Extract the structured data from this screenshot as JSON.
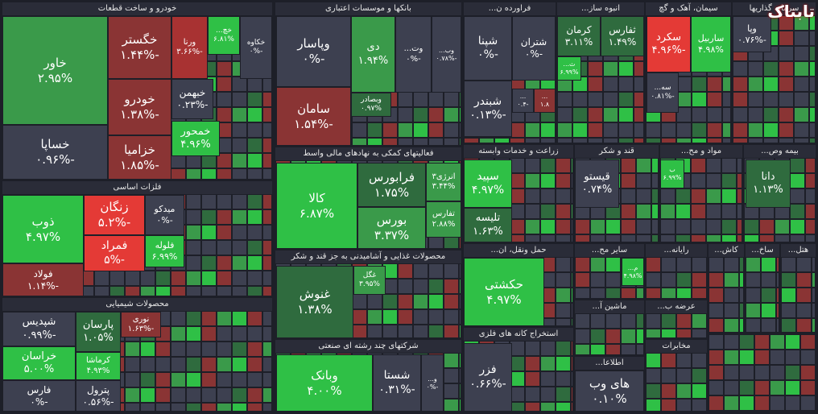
{
  "watermark": "تابناک",
  "sectors": [
    {
      "title": "خودرو و ساخت قطعات",
      "tiles": [
        {
          "name": "خاور",
          "change": "۲.۹۵%"
        },
        {
          "name": "خساپا",
          "change": "-۰.۹۶%"
        },
        {
          "name": "خگستر",
          "change": "-۱.۴۴%"
        },
        {
          "name": "ورنا",
          "change": "-۳.۶۶%"
        },
        {
          "name": "خچ...",
          "change": "۶.۸۱%"
        },
        {
          "name": "خکاوه",
          "change": "-۰%"
        },
        {
          "name": "خودرو",
          "change": "-۱.۳۸%"
        },
        {
          "name": "خزامیا",
          "change": "-۱.۸۵%"
        },
        {
          "name": "خبهمن",
          "change": "-۰.۲۳%"
        },
        {
          "name": "خمحور",
          "change": "۴.۹۶%"
        }
      ]
    },
    {
      "title": "بانکها و موسسات اعتباری",
      "tiles": [
        {
          "name": "وپاسار",
          "change": "-۰%"
        },
        {
          "name": "سامان",
          "change": "-۱.۵۴%"
        },
        {
          "name": "دی",
          "change": "۱.۹۴%"
        },
        {
          "name": "وت...",
          "change": "-۰%"
        },
        {
          "name": "وب...",
          "change": "-۰.۷۸%"
        },
        {
          "name": "وبصادر",
          "change": "۰.۹۷%"
        }
      ]
    },
    {
      "title": "فراورده ن...",
      "tiles": [
        {
          "name": "شپنا",
          "change": "-۰%"
        },
        {
          "name": "شتران",
          "change": "-۰%"
        },
        {
          "name": "شبندر",
          "change": "-۰.۱۳%"
        },
        {
          "name": "...",
          "change": "-۰.۴"
        },
        {
          "name": "...",
          "change": "۱.۸"
        }
      ]
    },
    {
      "title": "انبوه ساز...",
      "tiles": [
        {
          "name": "کرمان",
          "change": "۳.۱۱%"
        },
        {
          "name": "ثفارس",
          "change": "۱.۴۹%"
        },
        {
          "name": "ث...",
          "change": "۶.۹۹%"
        }
      ]
    },
    {
      "title": "سیمان، آهک و گچ",
      "tiles": [
        {
          "name": "سکرد",
          "change": "-۴.۹۶%"
        },
        {
          "name": "ساربیل",
          "change": "۴.۹۸%"
        },
        {
          "name": "سه...",
          "change": "-۰.۸۱%"
        }
      ]
    },
    {
      "title": "سرمایه گذاریها",
      "tiles": [
        {
          "name": "وپا",
          "change": "-۰.۷۶%"
        }
      ]
    },
    {
      "title": "فلزات اساسی",
      "tiles": [
        {
          "name": "ذوب",
          "change": "۴.۹۷%"
        },
        {
          "name": "فولاد",
          "change": "-۱.۱۴%"
        },
        {
          "name": "زنگان",
          "change": "-۵.۲%"
        },
        {
          "name": "فمراد",
          "change": "-۵%"
        },
        {
          "name": "میدکو",
          "change": "-۰%"
        },
        {
          "name": "فلوله",
          "change": "۶.۹۹%"
        }
      ]
    },
    {
      "title": "محصولات شیمیایی",
      "tiles": [
        {
          "name": "شپدیس",
          "change": "-۰.۹۹%"
        },
        {
          "name": "خراسان",
          "change": "۵.۰۰%"
        },
        {
          "name": "فارس",
          "change": "-۰%"
        },
        {
          "name": "پارسان",
          "change": "۱.۰۵%"
        },
        {
          "name": "کرماشا",
          "change": "۴.۹۳%"
        },
        {
          "name": "پترول",
          "change": "-۰.۵۶%"
        },
        {
          "name": "نوری",
          "change": "-۱.۶۳%"
        }
      ]
    },
    {
      "title": "فعالیتهای کمکی به نهادهای مالی واسط",
      "tiles": [
        {
          "name": "کالا",
          "change": "۶.۸۷%"
        },
        {
          "name": "فرابورس",
          "change": "۱.۷۵%"
        },
        {
          "name": "بورس",
          "change": "۳.۳۷%"
        },
        {
          "name": "انرژی۳",
          "change": "۳.۴۴%"
        },
        {
          "name": "تفارس",
          "change": "۲.۸۸%"
        }
      ]
    },
    {
      "title": "محصولات غذایی و آشامیدنی به جز قند و شکر",
      "tiles": [
        {
          "name": "غنوش",
          "change": "۱.۳۸%"
        },
        {
          "name": "غگل",
          "change": "۳.۹۵%"
        }
      ]
    },
    {
      "title": "شرکتهای چند رشته ای صنعتی",
      "tiles": [
        {
          "name": "وبانک",
          "change": "۴.۰۰%"
        },
        {
          "name": "شستا",
          "change": "-۰.۳۱%"
        },
        {
          "name": "و...",
          "change": "-۰%"
        }
      ]
    },
    {
      "title": "زراعت و خدمات وابسته",
      "tiles": [
        {
          "name": "سپید",
          "change": "۴.۹۷%"
        },
        {
          "name": "تلیسه",
          "change": "۱.۶۳%"
        }
      ]
    },
    {
      "title": "حمل ونقل، ان...",
      "tiles": [
        {
          "name": "حکشتی",
          "change": "۴.۹۷%"
        }
      ]
    },
    {
      "title": "استخراج کانه های فلزی",
      "tiles": [
        {
          "name": "فزر",
          "change": "-۰.۶۶%"
        }
      ]
    },
    {
      "title": "قند و شکر",
      "tiles": [
        {
          "name": "قیستو",
          "change": "۰.۷۴%"
        }
      ]
    },
    {
      "title": "مواد و مح...",
      "tiles": [
        {
          "name": "ب",
          "change": "۶.۹۹%"
        }
      ]
    },
    {
      "title": "بیمه وص...",
      "tiles": [
        {
          "name": "دانا",
          "change": "۱.۱۳%"
        }
      ]
    },
    {
      "title": "سایر مح...",
      "tiles": [
        {
          "name": "م...",
          "change": "۴.۹۸%"
        }
      ]
    },
    {
      "title": "ماشین آ...",
      "tiles": []
    },
    {
      "title": "اطلاعا...",
      "tiles": [
        {
          "name": "های وب",
          "change": "۰.۱۰%"
        }
      ]
    },
    {
      "title": "رایانه...",
      "tiles": []
    },
    {
      "title": "عرضه ب...",
      "tiles": []
    },
    {
      "title": "مخابرات",
      "tiles": []
    },
    {
      "title": "کاش...",
      "tiles": []
    },
    {
      "title": "ساخ...",
      "tiles": []
    },
    {
      "title": "هتل...",
      "tiles": []
    }
  ]
}
